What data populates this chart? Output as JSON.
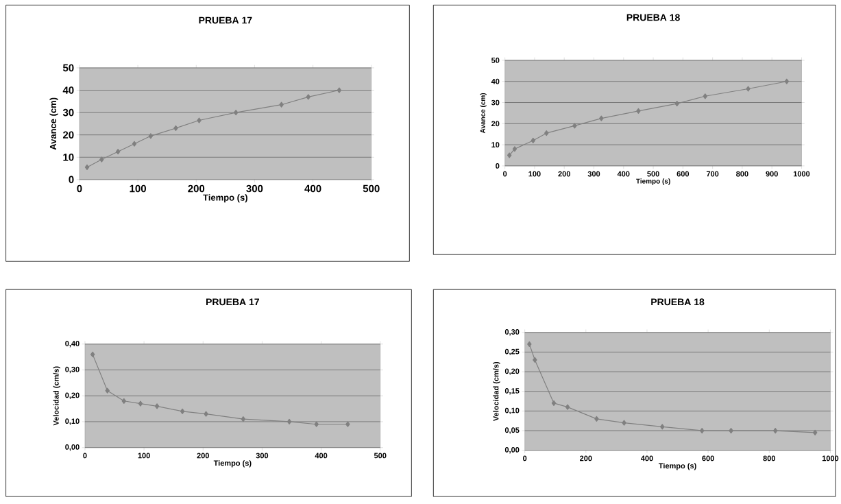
{
  "chart_data": [
    {
      "type": "line",
      "title": "PRUEBA 17",
      "xlabel": "Tiempo (s)",
      "ylabel": "Avance (cm)",
      "x": [
        13,
        38,
        66,
        94,
        122,
        165,
        205,
        268,
        346,
        392,
        445
      ],
      "values": [
        5.5,
        9,
        12.5,
        16,
        19.5,
        23,
        26.5,
        30,
        33.5,
        37,
        40
      ],
      "color": "#808080",
      "marker": "diamond",
      "grid": "y",
      "xlim": [
        0,
        500
      ],
      "xticks": [
        0,
        100,
        200,
        300,
        400,
        500
      ],
      "ylim": [
        0,
        50
      ],
      "yticks": [
        0,
        10,
        20,
        30,
        40,
        50
      ]
    },
    {
      "type": "line",
      "title": "PRUEBA 18",
      "xlabel": "Tiempo (s)",
      "ylabel": "Avance (cm)",
      "x": [
        15,
        33,
        95,
        140,
        235,
        325,
        450,
        580,
        675,
        820,
        950
      ],
      "values": [
        5,
        8,
        12,
        15.5,
        19,
        22.5,
        26,
        29.5,
        33,
        36.5,
        40
      ],
      "color": "#808080",
      "marker": "diamond",
      "grid": "y",
      "xlim": [
        0,
        1000
      ],
      "xticks": [
        0,
        100,
        200,
        300,
        400,
        500,
        600,
        700,
        800,
        900,
        1000
      ],
      "ylim": [
        0,
        50
      ],
      "yticks": [
        0,
        10,
        20,
        30,
        40,
        50
      ]
    },
    {
      "type": "line",
      "title": "PRUEBA 17",
      "xlabel": "Tiempo (s)",
      "ylabel": "Velocidad (cm/s)",
      "x": [
        13,
        38,
        66,
        94,
        122,
        165,
        205,
        268,
        346,
        392,
        445
      ],
      "values": [
        0.36,
        0.22,
        0.18,
        0.17,
        0.16,
        0.14,
        0.13,
        0.11,
        0.1,
        0.09,
        0.09
      ],
      "color": "#808080",
      "marker": "diamond",
      "grid": "y",
      "xlim": [
        0,
        500
      ],
      "xticks": [
        0,
        100,
        200,
        300,
        400,
        500
      ],
      "ylim": [
        0,
        0.4
      ],
      "yticks": [
        {
          "value": 0,
          "label": "0,00"
        },
        {
          "value": 0.1,
          "label": "0,10"
        },
        {
          "value": 0.2,
          "label": "0,20"
        },
        {
          "value": 0.3,
          "label": "0,30"
        },
        {
          "value": 0.4,
          "label": "0,40"
        }
      ]
    },
    {
      "type": "line",
      "title": "PRUEBA 18",
      "xlabel": "Tiempo (s)",
      "ylabel": "Velocidad (cm/s)",
      "x": [
        15,
        33,
        95,
        140,
        235,
        325,
        450,
        580,
        675,
        820,
        950
      ],
      "values": [
        0.27,
        0.23,
        0.12,
        0.11,
        0.08,
        0.07,
        0.06,
        0.05,
        0.05,
        0.05,
        0.045
      ],
      "color": "#808080",
      "marker": "diamond",
      "grid": "y",
      "xlim": [
        0,
        1000
      ],
      "xticks": [
        0,
        200,
        400,
        600,
        800,
        1000
      ],
      "ylim": [
        0,
        0.3
      ],
      "yticks": [
        {
          "value": 0,
          "label": "0,00"
        },
        {
          "value": 0.05,
          "label": "0,05"
        },
        {
          "value": 0.1,
          "label": "0,10"
        },
        {
          "value": 0.15,
          "label": "0,15"
        },
        {
          "value": 0.2,
          "label": "0,20"
        },
        {
          "value": 0.25,
          "label": "0,25"
        },
        {
          "value": 0.3,
          "label": "0,30"
        }
      ]
    }
  ]
}
